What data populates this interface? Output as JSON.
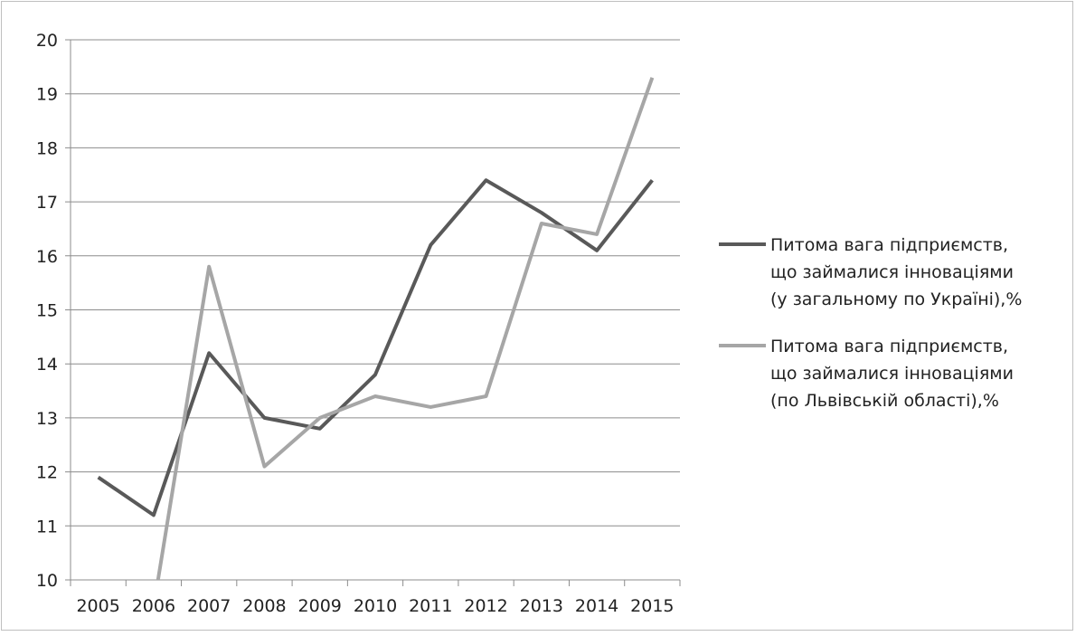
{
  "chart_data": {
    "type": "line",
    "title": "",
    "xlabel": "",
    "ylabel": "",
    "ylim": [
      10,
      20
    ],
    "yticks": [
      10,
      11,
      12,
      13,
      14,
      15,
      16,
      17,
      18,
      19,
      20
    ],
    "grid": true,
    "legend_position": "right",
    "categories": [
      "2005",
      "2006",
      "2007",
      "2008",
      "2009",
      "2010",
      "2011",
      "2012",
      "2013",
      "2014",
      "2015"
    ],
    "series": [
      {
        "name": "Питома вага підприємств, що займалися інноваціями (у загальному по Україні),%",
        "legend_lines": [
          "Питома вага підприємств,",
          "що займалися інноваціями",
          "(у загальному по Україні),%"
        ],
        "color": "#595959",
        "values": [
          11.9,
          11.2,
          14.2,
          13.0,
          12.8,
          13.8,
          16.2,
          17.4,
          16.8,
          16.1,
          17.4
        ]
      },
      {
        "name": "Питома вага підприємств, що займалися інноваціями (по Львівській області),%",
        "legend_lines": [
          "Питома вага підприємств,",
          "що займалися інноваціями",
          "(по Львівській області),%"
        ],
        "color": "#a6a6a6",
        "values": [
          null,
          9.5,
          15.8,
          12.1,
          13.0,
          13.4,
          13.2,
          13.4,
          16.6,
          16.4,
          19.3
        ]
      }
    ]
  }
}
